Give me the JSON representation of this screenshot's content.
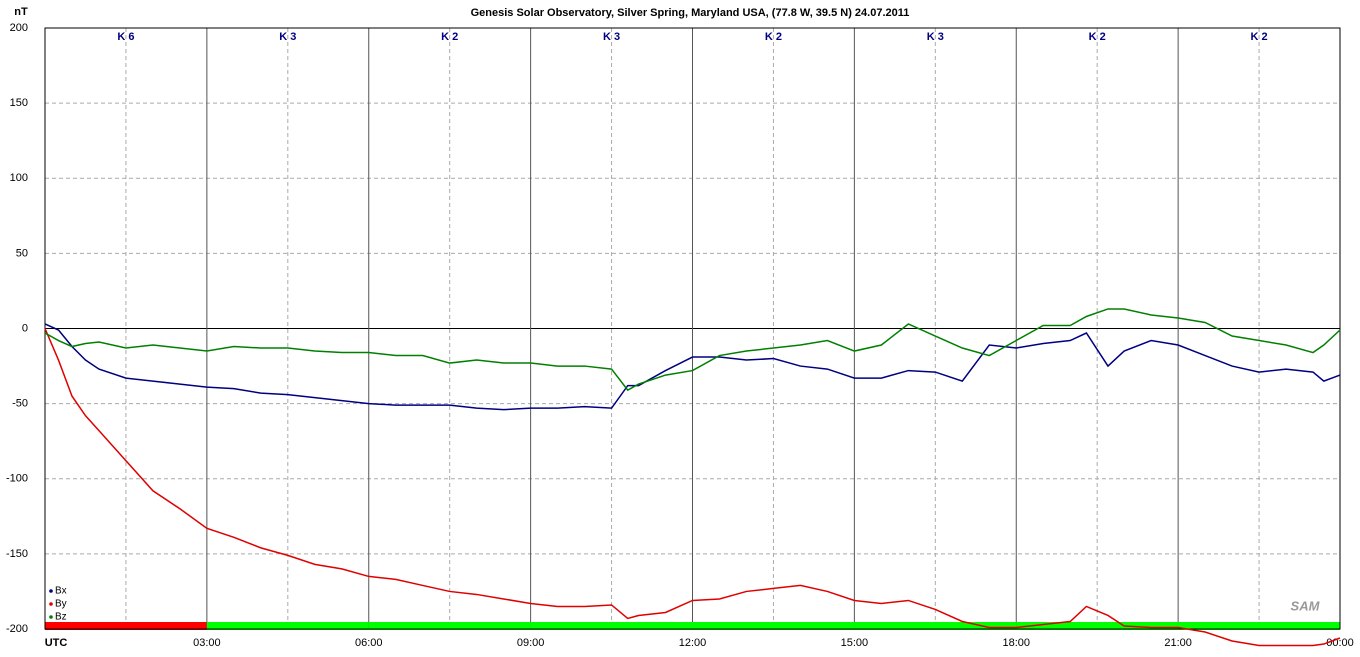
{
  "chart_data": {
    "type": "line",
    "title": "Genesis Solar Observatory, Silver Spring, Maryland USA, (77.8 W, 39.5 N)  24.07.2011",
    "ylabel": "nT",
    "x": [
      0,
      0.25,
      0.5,
      0.75,
      1,
      1.5,
      2,
      2.5,
      3,
      3.5,
      4,
      4.5,
      5,
      5.5,
      6,
      6.5,
      7,
      7.5,
      8,
      8.5,
      9,
      9.5,
      10,
      10.5,
      10.8,
      11,
      11.5,
      12,
      12.5,
      13,
      13.5,
      14,
      14.5,
      15,
      15.5,
      16,
      16.5,
      17,
      17.5,
      18,
      18.5,
      19,
      19.3,
      19.7,
      20,
      20.5,
      21,
      21.5,
      22,
      22.5,
      23,
      23.5,
      23.7,
      24
    ],
    "series": [
      {
        "name": "Bx",
        "color": "#000080",
        "values": [
          3,
          -1,
          -12,
          -21,
          -27,
          -33,
          -35,
          -37,
          -39,
          -40,
          -43,
          -44,
          -46,
          -48,
          -50,
          -51,
          -51,
          -51,
          -53,
          -54,
          -53,
          -53,
          -52,
          -53,
          -38,
          -38,
          -28,
          -19,
          -19,
          -21,
          -20,
          -25,
          -27,
          -33,
          -33,
          -28,
          -29,
          -35,
          -11,
          -13,
          -10,
          -8,
          -3,
          -25,
          -15,
          -8,
          -11,
          -18,
          -25,
          -29,
          -27,
          -29,
          -35,
          -31
        ]
      },
      {
        "name": "By",
        "color": "#e00000",
        "values": [
          0,
          -21,
          -45,
          -58,
          -68,
          -88,
          -108,
          -120,
          -133,
          -139,
          -146,
          -151,
          -157,
          -160,
          -165,
          -167,
          -171,
          -175,
          -177,
          -180,
          -183,
          -185,
          -185,
          -184,
          -193,
          -191,
          -189,
          -181,
          -180,
          -175,
          -173,
          -171,
          -175,
          -181,
          -183,
          -181,
          -187,
          -195,
          -199,
          -199,
          -197,
          -195,
          -185,
          -191,
          -198,
          -199,
          -199,
          -202,
          -208,
          -211,
          -211,
          -211,
          -210,
          -206
        ]
      },
      {
        "name": "Bz",
        "color": "#008000",
        "values": [
          -3,
          -8,
          -12,
          -10,
          -9,
          -13,
          -11,
          -13,
          -15,
          -12,
          -13,
          -13,
          -15,
          -16,
          -16,
          -18,
          -18,
          -23,
          -21,
          -23,
          -23,
          -25,
          -25,
          -27,
          -41,
          -37,
          -31,
          -28,
          -18,
          -15,
          -13,
          -11,
          -8,
          -15,
          -11,
          3,
          -5,
          -13,
          -18,
          -8,
          2,
          2,
          8,
          13,
          13,
          9,
          7,
          4,
          -5,
          -8,
          -11,
          -16,
          -11,
          -1
        ]
      }
    ],
    "xlim": [
      0,
      24
    ],
    "xticks": [
      {
        "value": 0,
        "label": "UTC"
      },
      {
        "value": 3,
        "label": "03:00"
      },
      {
        "value": 6,
        "label": "06:00"
      },
      {
        "value": 9,
        "label": "09:00"
      },
      {
        "value": 12,
        "label": "12:00"
      },
      {
        "value": 15,
        "label": "15:00"
      },
      {
        "value": 18,
        "label": "18:00"
      },
      {
        "value": 21,
        "label": "21:00"
      },
      {
        "value": 24,
        "label": "00:00"
      }
    ],
    "ylim": [
      -200,
      200
    ],
    "yticks": [
      200,
      150,
      100,
      50,
      0,
      -50,
      -100,
      -150,
      -200
    ],
    "grid": true,
    "legend": "lower left",
    "k_index": {
      "labels": [
        "K 6",
        "K 3",
        "K 2",
        "K 3",
        "K 2",
        "K 3",
        "K 2",
        "K 2"
      ],
      "colors": [
        "#ff0000",
        "#00ff00",
        "#00ff00",
        "#00ff00",
        "#00ff00",
        "#00ff00",
        "#00ff00",
        "#00ff00"
      ]
    },
    "logo": "SAM"
  }
}
